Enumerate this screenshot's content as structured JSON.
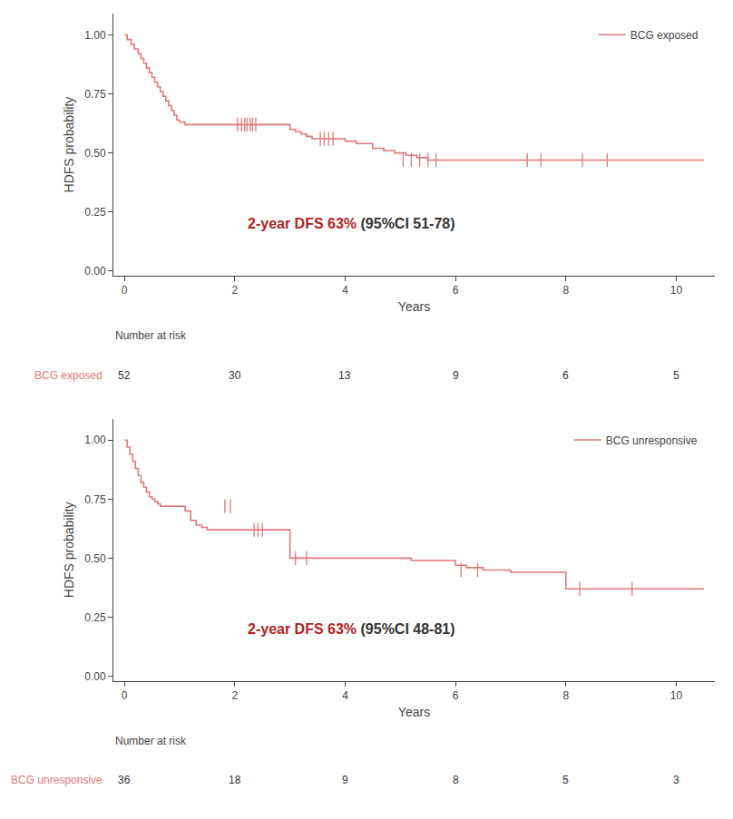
{
  "chart_data": [
    {
      "type": "line",
      "x_label": "Years",
      "y_label": "HDFS probability",
      "xlim": [
        -0.2,
        10.7
      ],
      "ylim": [
        -0.02,
        1.09
      ],
      "xticks": [
        0,
        2,
        4,
        6,
        8,
        10
      ],
      "yticks": [
        {
          "value": 0.0,
          "label": "0.00"
        },
        0.25,
        {
          "value": 0.5,
          "label": "0.50"
        },
        0.75,
        {
          "value": 1.0,
          "label": "1.00"
        }
      ],
      "grid": false,
      "legend": "upper right",
      "series": [
        {
          "name": "BCG exposed",
          "type": "step",
          "color": "#E07878",
          "x": [
            0.0,
            0.05,
            0.12,
            0.18,
            0.25,
            0.3,
            0.35,
            0.4,
            0.45,
            0.5,
            0.55,
            0.6,
            0.65,
            0.7,
            0.75,
            0.8,
            0.85,
            0.9,
            0.95,
            1.0,
            1.1,
            1.2,
            1.3,
            1.4,
            1.5,
            1.6,
            1.7,
            1.8,
            1.9,
            2.0,
            2.05,
            2.1,
            2.15,
            2.2,
            2.25,
            2.3,
            2.35,
            2.4,
            2.5,
            2.6,
            2.7,
            2.8,
            2.9,
            3.0,
            3.1,
            3.2,
            3.3,
            3.4,
            3.5,
            3.6,
            3.7,
            3.8,
            4.0,
            4.2,
            4.5,
            4.7,
            4.9,
            5.1,
            5.3,
            5.5,
            5.7,
            6.0,
            6.5,
            7.0,
            7.5,
            8.0,
            8.5,
            9.0,
            9.5,
            10.0,
            10.5
          ],
          "values": [
            1.0,
            0.98,
            0.96,
            0.94,
            0.92,
            0.9,
            0.88,
            0.86,
            0.84,
            0.82,
            0.8,
            0.78,
            0.76,
            0.74,
            0.72,
            0.7,
            0.68,
            0.66,
            0.64,
            0.63,
            0.62,
            0.62,
            0.62,
            0.62,
            0.62,
            0.62,
            0.62,
            0.62,
            0.62,
            0.62,
            0.62,
            0.62,
            0.62,
            0.62,
            0.62,
            0.62,
            0.62,
            0.62,
            0.62,
            0.62,
            0.62,
            0.62,
            0.62,
            0.6,
            0.59,
            0.58,
            0.57,
            0.56,
            0.56,
            0.56,
            0.56,
            0.56,
            0.55,
            0.54,
            0.52,
            0.51,
            0.5,
            0.49,
            0.48,
            0.47,
            0.47,
            0.47,
            0.47,
            0.47,
            0.47,
            0.47,
            0.47,
            0.47,
            0.47,
            0.47,
            0.47
          ]
        },
        {
          "type": "scatter",
          "marker": "line-ns",
          "color": "#E07878",
          "x": [
            2.05,
            2.12,
            2.18,
            2.22,
            2.28,
            2.32,
            2.38,
            3.55,
            3.62,
            3.7,
            3.78,
            5.05,
            5.2,
            5.35,
            5.5,
            5.65,
            7.3,
            7.55,
            8.3,
            8.75
          ],
          "values": [
            0.62,
            0.62,
            0.62,
            0.62,
            0.62,
            0.62,
            0.62,
            0.56,
            0.56,
            0.56,
            0.56,
            0.47,
            0.47,
            0.47,
            0.47,
            0.47,
            0.47,
            0.47,
            0.47,
            0.47
          ]
        }
      ],
      "annotations": [
        {
          "text": "2-year DFS 63%",
          "color": "#B22222"
        },
        {
          "text": " (95%CI 51-78)",
          "color": "#333333"
        }
      ],
      "risk_table": {
        "title": "Number at risk",
        "label": "BCG exposed",
        "x": [
          0,
          2,
          4,
          6,
          8,
          10
        ],
        "values": [
          52,
          30,
          13,
          9,
          6,
          5
        ]
      }
    },
    {
      "type": "line",
      "x_label": "Years",
      "y_label": "HDFS probability",
      "xlim": [
        -0.2,
        10.7
      ],
      "ylim": [
        -0.02,
        1.09
      ],
      "xticks": [
        0,
        2,
        4,
        6,
        8,
        10
      ],
      "yticks": [
        {
          "value": 0.0,
          "label": "0.00"
        },
        0.25,
        {
          "value": 0.5,
          "label": "0.50"
        },
        0.75,
        {
          "value": 1.0,
          "label": "1.00"
        }
      ],
      "grid": false,
      "legend": "upper right",
      "series": [
        {
          "name": "BCG unresponsive",
          "type": "step",
          "color": "#E07878",
          "x": [
            0.0,
            0.05,
            0.1,
            0.15,
            0.2,
            0.25,
            0.3,
            0.35,
            0.4,
            0.45,
            0.5,
            0.55,
            0.6,
            0.65,
            0.7,
            0.75,
            0.8,
            0.9,
            1.0,
            1.1,
            1.2,
            1.3,
            1.4,
            1.5,
            1.6,
            1.7,
            1.8,
            1.9,
            2.0,
            2.1,
            2.2,
            2.3,
            2.4,
            2.45,
            2.5,
            2.6,
            2.7,
            2.8,
            2.9,
            3.0,
            3.2,
            3.5,
            4.0,
            4.5,
            5.0,
            5.2,
            5.5,
            5.8,
            6.0,
            6.2,
            6.5,
            6.7,
            7.0,
            7.2,
            7.5,
            8.0,
            8.5,
            9.0,
            9.5,
            10.0,
            10.5
          ],
          "values": [
            1.0,
            0.97,
            0.94,
            0.91,
            0.88,
            0.85,
            0.82,
            0.8,
            0.78,
            0.76,
            0.75,
            0.74,
            0.73,
            0.72,
            0.72,
            0.72,
            0.72,
            0.72,
            0.72,
            0.7,
            0.66,
            0.64,
            0.63,
            0.62,
            0.62,
            0.62,
            0.62,
            0.62,
            0.62,
            0.62,
            0.62,
            0.62,
            0.62,
            0.62,
            0.62,
            0.62,
            0.62,
            0.62,
            0.62,
            0.5,
            0.5,
            0.5,
            0.5,
            0.5,
            0.5,
            0.49,
            0.49,
            0.49,
            0.47,
            0.46,
            0.45,
            0.45,
            0.44,
            0.44,
            0.44,
            0.37,
            0.37,
            0.37,
            0.37,
            0.37,
            0.37
          ]
        },
        {
          "type": "scatter",
          "marker": "line-ns",
          "color": "#E07878",
          "x": [
            1.82,
            1.92,
            2.35,
            2.42,
            2.5,
            3.1,
            3.3,
            6.1,
            6.4,
            8.25,
            9.2
          ],
          "values": [
            0.72,
            0.72,
            0.62,
            0.62,
            0.62,
            0.5,
            0.5,
            0.45,
            0.45,
            0.37,
            0.37
          ]
        }
      ],
      "annotations": [
        {
          "text": "2-year DFS 63%",
          "color": "#B22222"
        },
        {
          "text": " (95%CI 48-81)",
          "color": "#333333"
        }
      ],
      "risk_table": {
        "title": "Number at risk",
        "label": "BCG unresponsive",
        "x": [
          0,
          2,
          4,
          6,
          8,
          10
        ],
        "values": [
          36,
          18,
          9,
          8,
          5,
          3
        ]
      }
    }
  ]
}
